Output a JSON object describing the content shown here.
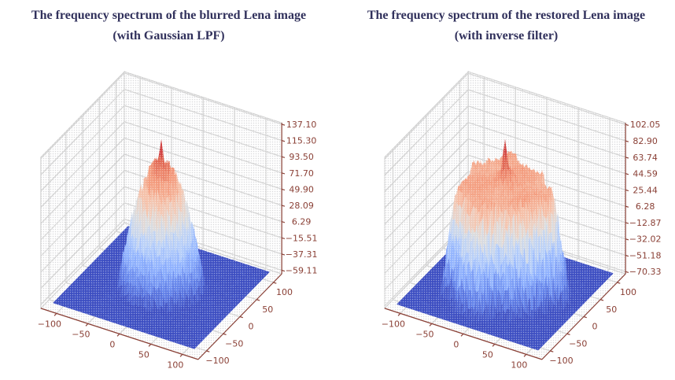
{
  "page": {
    "background": "#ffffff"
  },
  "chart_data": [
    {
      "type": "surface3d",
      "title": [
        "The frequency spectrum of the blurred Lena image",
        "(with Gaussian LPF)"
      ],
      "colormap": "coolwarm",
      "x_ticks": [
        -100,
        -50,
        0,
        50,
        100
      ],
      "y_ticks": [
        -100,
        -50,
        0,
        50,
        100
      ],
      "z_ticks": [
        137.1,
        115.3,
        93.5,
        71.7,
        49.9,
        28.09,
        6.29,
        -15.51,
        -37.31,
        -59.11
      ],
      "xlim": [
        -125,
        125
      ],
      "ylim": [
        -125,
        125
      ],
      "zlim": [
        -64,
        139
      ],
      "data_extent": 112,
      "z_base": -59.11,
      "z_peak": 137.1,
      "grid": true,
      "legend": "none",
      "surface": {
        "shape": "power-cone",
        "radius": 62,
        "top": 110,
        "power": 1.6,
        "spike_height": 30,
        "spike_sigma": 1.8,
        "noise": 16,
        "seed": 7
      }
    },
    {
      "type": "surface3d",
      "title": [
        "The frequency spectrum of the restored Lena image",
        "(with inverse filter)"
      ],
      "colormap": "coolwarm",
      "x_ticks": [
        -100,
        -50,
        0,
        50,
        100
      ],
      "y_ticks": [
        -100,
        -50,
        0,
        50,
        100
      ],
      "z_ticks": [
        102.05,
        82.9,
        63.74,
        44.59,
        25.44,
        6.28,
        -12.87,
        -32.02,
        -51.18,
        -70.33
      ],
      "xlim": [
        -125,
        125
      ],
      "ylim": [
        -125,
        125
      ],
      "zlim": [
        -73,
        104
      ],
      "data_extent": 112,
      "z_base": -70.33,
      "z_peak": 102.05,
      "grid": true,
      "legend": "none",
      "surface": {
        "shape": "noisy-plateau",
        "plateau_radius": 80,
        "plateau_height": 52,
        "spike_height": 40,
        "spike_sigma": 2.0,
        "noise": 30,
        "seed": 11
      }
    }
  ],
  "style": {
    "title_color": "#31315c",
    "axis_color": "#8a4036",
    "tick_label_color": "#8a4036",
    "grid_color": "#d2d2d2",
    "pane_edge_color": "#cccccc",
    "base_plane_color": "#3b4cc0",
    "colormap_stops": [
      [
        0.0,
        59,
        76,
        192
      ],
      [
        0.125,
        98,
        130,
        234
      ],
      [
        0.25,
        141,
        176,
        254
      ],
      [
        0.375,
        184,
        208,
        249
      ],
      [
        0.5,
        221,
        221,
        221
      ],
      [
        0.625,
        245,
        196,
        173
      ],
      [
        0.75,
        244,
        154,
        123
      ],
      [
        0.875,
        222,
        96,
        77
      ],
      [
        1.0,
        180,
        4,
        38
      ]
    ]
  }
}
